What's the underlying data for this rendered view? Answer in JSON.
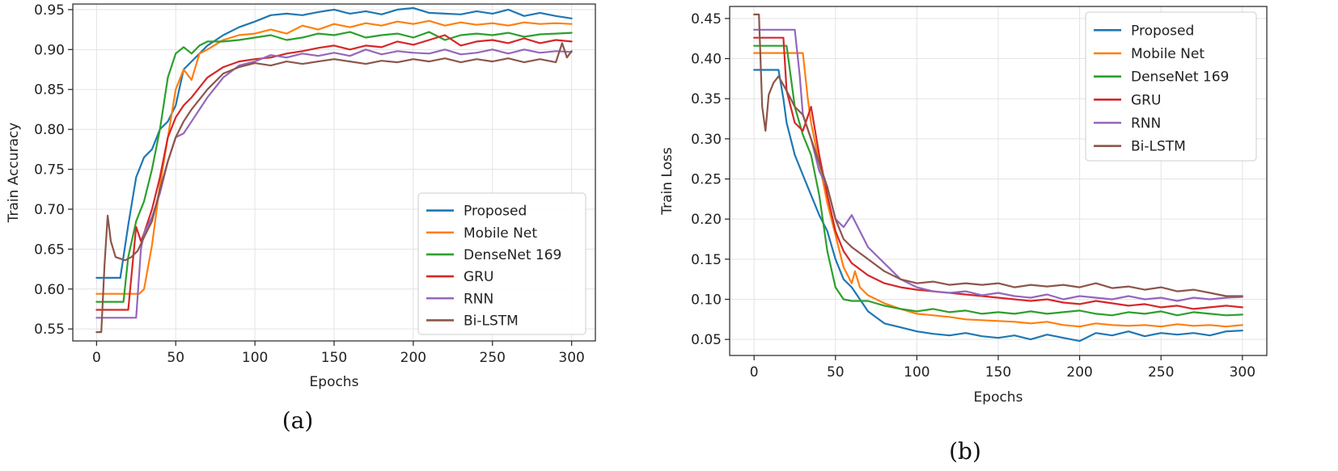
{
  "chart_data": [
    {
      "type": "line",
      "caption": "(a)",
      "title": "",
      "xlabel": "Epochs",
      "ylabel": "Train Accuracy",
      "xlim": [
        -15,
        315
      ],
      "ylim": [
        0.535,
        0.957
      ],
      "xticks": [
        0,
        50,
        100,
        150,
        200,
        250,
        300
      ],
      "yticks": [
        0.55,
        0.6,
        0.65,
        0.7,
        0.75,
        0.8,
        0.85,
        0.9,
        0.95
      ],
      "ytick_labels": [
        "0.55",
        "0.60",
        "0.65",
        "0.70",
        "0.75",
        "0.80",
        "0.85",
        "0.90",
        "0.95"
      ],
      "grid": true,
      "legend_position": "lower-right",
      "series": [
        {
          "name": "Proposed",
          "color": "#1f77b4",
          "x": [
            0,
            5,
            10,
            15,
            20,
            25,
            30,
            35,
            40,
            45,
            50,
            55,
            60,
            70,
            80,
            90,
            100,
            110,
            120,
            130,
            140,
            150,
            160,
            170,
            180,
            190,
            200,
            210,
            220,
            230,
            240,
            250,
            260,
            270,
            280,
            290,
            300
          ],
          "y": [
            0.614,
            0.614,
            0.614,
            0.614,
            0.68,
            0.74,
            0.765,
            0.775,
            0.8,
            0.81,
            0.83,
            0.875,
            0.885,
            0.905,
            0.918,
            0.928,
            0.935,
            0.943,
            0.945,
            0.943,
            0.947,
            0.95,
            0.945,
            0.948,
            0.944,
            0.95,
            0.952,
            0.946,
            0.945,
            0.944,
            0.948,
            0.945,
            0.95,
            0.942,
            0.946,
            0.942,
            0.939
          ]
        },
        {
          "name": "Mobile Net",
          "color": "#ff7f0e",
          "x": [
            0,
            10,
            20,
            27,
            30,
            35,
            40,
            45,
            50,
            55,
            60,
            65,
            70,
            80,
            90,
            100,
            110,
            120,
            130,
            140,
            150,
            160,
            170,
            180,
            190,
            200,
            210,
            220,
            230,
            240,
            250,
            260,
            270,
            280,
            290,
            300
          ],
          "y": [
            0.594,
            0.594,
            0.594,
            0.594,
            0.6,
            0.655,
            0.73,
            0.79,
            0.85,
            0.875,
            0.862,
            0.895,
            0.9,
            0.912,
            0.918,
            0.92,
            0.925,
            0.92,
            0.93,
            0.925,
            0.932,
            0.928,
            0.933,
            0.93,
            0.935,
            0.932,
            0.936,
            0.93,
            0.934,
            0.931,
            0.933,
            0.93,
            0.934,
            0.932,
            0.933,
            0.932
          ]
        },
        {
          "name": "DenseNet 169",
          "color": "#2ca02c",
          "x": [
            0,
            10,
            17,
            20,
            25,
            30,
            35,
            40,
            45,
            50,
            55,
            60,
            65,
            70,
            80,
            90,
            100,
            110,
            120,
            130,
            140,
            150,
            160,
            170,
            180,
            190,
            200,
            210,
            220,
            230,
            240,
            250,
            260,
            270,
            280,
            290,
            300
          ],
          "y": [
            0.584,
            0.584,
            0.584,
            0.64,
            0.685,
            0.71,
            0.75,
            0.8,
            0.865,
            0.895,
            0.903,
            0.895,
            0.905,
            0.91,
            0.91,
            0.912,
            0.915,
            0.918,
            0.912,
            0.915,
            0.92,
            0.918,
            0.922,
            0.915,
            0.918,
            0.92,
            0.915,
            0.922,
            0.912,
            0.918,
            0.92,
            0.918,
            0.921,
            0.916,
            0.919,
            0.92,
            0.921
          ]
        },
        {
          "name": "GRU",
          "color": "#d62728",
          "x": [
            0,
            10,
            20,
            25,
            28,
            30,
            35,
            40,
            45,
            50,
            55,
            60,
            70,
            80,
            90,
            100,
            110,
            120,
            130,
            140,
            150,
            160,
            170,
            180,
            190,
            200,
            210,
            220,
            230,
            240,
            250,
            260,
            270,
            280,
            290,
            300
          ],
          "y": [
            0.574,
            0.574,
            0.574,
            0.678,
            0.66,
            0.67,
            0.7,
            0.74,
            0.79,
            0.815,
            0.83,
            0.84,
            0.865,
            0.878,
            0.885,
            0.888,
            0.89,
            0.895,
            0.898,
            0.902,
            0.905,
            0.9,
            0.905,
            0.903,
            0.91,
            0.906,
            0.912,
            0.918,
            0.905,
            0.91,
            0.912,
            0.908,
            0.914,
            0.908,
            0.912,
            0.91
          ]
        },
        {
          "name": "RNN",
          "color": "#9467bd",
          "x": [
            0,
            10,
            20,
            25,
            28,
            30,
            35,
            40,
            45,
            50,
            55,
            60,
            70,
            80,
            90,
            100,
            110,
            120,
            130,
            140,
            150,
            160,
            170,
            180,
            190,
            200,
            210,
            220,
            230,
            240,
            250,
            260,
            270,
            280,
            290,
            300
          ],
          "y": [
            0.564,
            0.564,
            0.564,
            0.564,
            0.65,
            0.67,
            0.69,
            0.72,
            0.76,
            0.79,
            0.795,
            0.81,
            0.84,
            0.865,
            0.88,
            0.885,
            0.893,
            0.89,
            0.895,
            0.892,
            0.896,
            0.892,
            0.9,
            0.894,
            0.898,
            0.896,
            0.895,
            0.9,
            0.894,
            0.896,
            0.9,
            0.895,
            0.9,
            0.896,
            0.898,
            0.897
          ]
        },
        {
          "name": "Bi-LSTM",
          "color": "#8c564b",
          "x": [
            0,
            3,
            5,
            7,
            9,
            12,
            15,
            18,
            22,
            26,
            30,
            35,
            40,
            45,
            50,
            55,
            60,
            70,
            80,
            90,
            100,
            110,
            120,
            130,
            140,
            150,
            160,
            170,
            180,
            190,
            200,
            210,
            220,
            230,
            240,
            250,
            260,
            270,
            280,
            290,
            294,
            297,
            300
          ],
          "y": [
            0.546,
            0.546,
            0.63,
            0.692,
            0.66,
            0.64,
            0.638,
            0.636,
            0.64,
            0.648,
            0.665,
            0.685,
            0.725,
            0.76,
            0.79,
            0.81,
            0.825,
            0.85,
            0.87,
            0.878,
            0.883,
            0.88,
            0.885,
            0.882,
            0.885,
            0.888,
            0.885,
            0.882,
            0.886,
            0.884,
            0.888,
            0.885,
            0.889,
            0.884,
            0.888,
            0.885,
            0.889,
            0.884,
            0.888,
            0.884,
            0.908,
            0.89,
            0.898
          ]
        }
      ]
    },
    {
      "type": "line",
      "caption": "(b)",
      "title": "",
      "xlabel": "Epochs",
      "ylabel": "Train Loss",
      "xlim": [
        -15,
        315
      ],
      "ylim": [
        0.03,
        0.465
      ],
      "xticks": [
        0,
        50,
        100,
        150,
        200,
        250,
        300
      ],
      "yticks": [
        0.05,
        0.1,
        0.15,
        0.2,
        0.25,
        0.3,
        0.35,
        0.4,
        0.45
      ],
      "ytick_labels": [
        "0.05",
        "0.10",
        "0.15",
        "0.20",
        "0.25",
        "0.30",
        "0.35",
        "0.40",
        "0.45"
      ],
      "grid": true,
      "legend_position": "top-right",
      "series": [
        {
          "name": "Proposed",
          "color": "#1f77b4",
          "x": [
            0,
            10,
            15,
            18,
            20,
            25,
            30,
            35,
            40,
            45,
            50,
            55,
            60,
            65,
            70,
            80,
            90,
            100,
            110,
            120,
            130,
            140,
            150,
            160,
            170,
            180,
            190,
            200,
            210,
            220,
            230,
            240,
            250,
            260,
            270,
            280,
            290,
            300
          ],
          "y": [
            0.386,
            0.386,
            0.386,
            0.35,
            0.32,
            0.28,
            0.255,
            0.23,
            0.205,
            0.185,
            0.15,
            0.125,
            0.115,
            0.1,
            0.085,
            0.07,
            0.065,
            0.06,
            0.057,
            0.055,
            0.058,
            0.054,
            0.052,
            0.055,
            0.05,
            0.056,
            0.052,
            0.048,
            0.058,
            0.055,
            0.06,
            0.054,
            0.058,
            0.056,
            0.058,
            0.055,
            0.06,
            0.061
          ]
        },
        {
          "name": "Mobile Net",
          "color": "#ff7f0e",
          "x": [
            0,
            10,
            20,
            25,
            30,
            33,
            35,
            40,
            45,
            50,
            55,
            60,
            62,
            65,
            70,
            80,
            90,
            100,
            110,
            120,
            130,
            140,
            150,
            160,
            170,
            180,
            190,
            200,
            210,
            220,
            230,
            240,
            250,
            260,
            270,
            280,
            290,
            300
          ],
          "y": [
            0.407,
            0.407,
            0.407,
            0.407,
            0.407,
            0.35,
            0.32,
            0.27,
            0.22,
            0.18,
            0.14,
            0.12,
            0.135,
            0.115,
            0.105,
            0.095,
            0.088,
            0.082,
            0.08,
            0.078,
            0.075,
            0.074,
            0.073,
            0.072,
            0.07,
            0.072,
            0.068,
            0.066,
            0.07,
            0.068,
            0.067,
            0.068,
            0.066,
            0.069,
            0.067,
            0.068,
            0.066,
            0.068
          ]
        },
        {
          "name": "DenseNet 169",
          "color": "#2ca02c",
          "x": [
            0,
            10,
            20,
            25,
            30,
            35,
            40,
            45,
            50,
            55,
            60,
            70,
            80,
            90,
            100,
            110,
            120,
            130,
            140,
            150,
            160,
            170,
            180,
            190,
            200,
            210,
            220,
            230,
            240,
            250,
            260,
            270,
            280,
            290,
            300
          ],
          "y": [
            0.416,
            0.416,
            0.416,
            0.34,
            0.305,
            0.28,
            0.23,
            0.16,
            0.115,
            0.1,
            0.098,
            0.098,
            0.092,
            0.088,
            0.085,
            0.088,
            0.084,
            0.086,
            0.082,
            0.084,
            0.082,
            0.085,
            0.082,
            0.084,
            0.086,
            0.082,
            0.08,
            0.084,
            0.082,
            0.085,
            0.08,
            0.084,
            0.082,
            0.08,
            0.081
          ]
        },
        {
          "name": "GRU",
          "color": "#d62728",
          "x": [
            0,
            10,
            18,
            20,
            25,
            30,
            35,
            40,
            45,
            50,
            55,
            60,
            70,
            80,
            90,
            100,
            110,
            120,
            130,
            140,
            150,
            160,
            170,
            180,
            190,
            200,
            210,
            220,
            230,
            240,
            250,
            260,
            270,
            280,
            290,
            300
          ],
          "y": [
            0.426,
            0.426,
            0.426,
            0.36,
            0.32,
            0.31,
            0.34,
            0.28,
            0.23,
            0.185,
            0.16,
            0.145,
            0.13,
            0.12,
            0.115,
            0.112,
            0.11,
            0.108,
            0.106,
            0.104,
            0.102,
            0.1,
            0.098,
            0.1,
            0.096,
            0.094,
            0.098,
            0.095,
            0.092,
            0.094,
            0.09,
            0.092,
            0.088,
            0.09,
            0.092,
            0.09
          ]
        },
        {
          "name": "RNN",
          "color": "#9467bd",
          "x": [
            0,
            10,
            20,
            25,
            28,
            30,
            35,
            40,
            45,
            50,
            55,
            60,
            65,
            70,
            80,
            90,
            100,
            110,
            120,
            130,
            140,
            150,
            160,
            170,
            180,
            190,
            200,
            210,
            220,
            230,
            240,
            250,
            260,
            270,
            280,
            290,
            300
          ],
          "y": [
            0.436,
            0.436,
            0.436,
            0.436,
            0.38,
            0.33,
            0.3,
            0.26,
            0.24,
            0.2,
            0.19,
            0.205,
            0.185,
            0.165,
            0.145,
            0.125,
            0.115,
            0.11,
            0.108,
            0.11,
            0.105,
            0.108,
            0.104,
            0.102,
            0.106,
            0.1,
            0.104,
            0.102,
            0.1,
            0.104,
            0.1,
            0.102,
            0.098,
            0.102,
            0.1,
            0.102,
            0.103
          ]
        },
        {
          "name": "Bi-LSTM",
          "color": "#8c564b",
          "x": [
            0,
            3,
            5,
            7,
            9,
            12,
            15,
            20,
            25,
            30,
            35,
            40,
            45,
            50,
            55,
            60,
            70,
            80,
            90,
            100,
            110,
            120,
            130,
            140,
            150,
            160,
            170,
            180,
            190,
            200,
            210,
            220,
            230,
            240,
            250,
            260,
            270,
            280,
            290,
            300
          ],
          "y": [
            0.455,
            0.455,
            0.34,
            0.31,
            0.355,
            0.37,
            0.378,
            0.36,
            0.34,
            0.33,
            0.3,
            0.27,
            0.24,
            0.2,
            0.175,
            0.165,
            0.15,
            0.135,
            0.125,
            0.12,
            0.122,
            0.118,
            0.12,
            0.118,
            0.12,
            0.115,
            0.118,
            0.116,
            0.118,
            0.115,
            0.12,
            0.114,
            0.116,
            0.112,
            0.115,
            0.11,
            0.112,
            0.108,
            0.104,
            0.104
          ]
        }
      ]
    }
  ]
}
